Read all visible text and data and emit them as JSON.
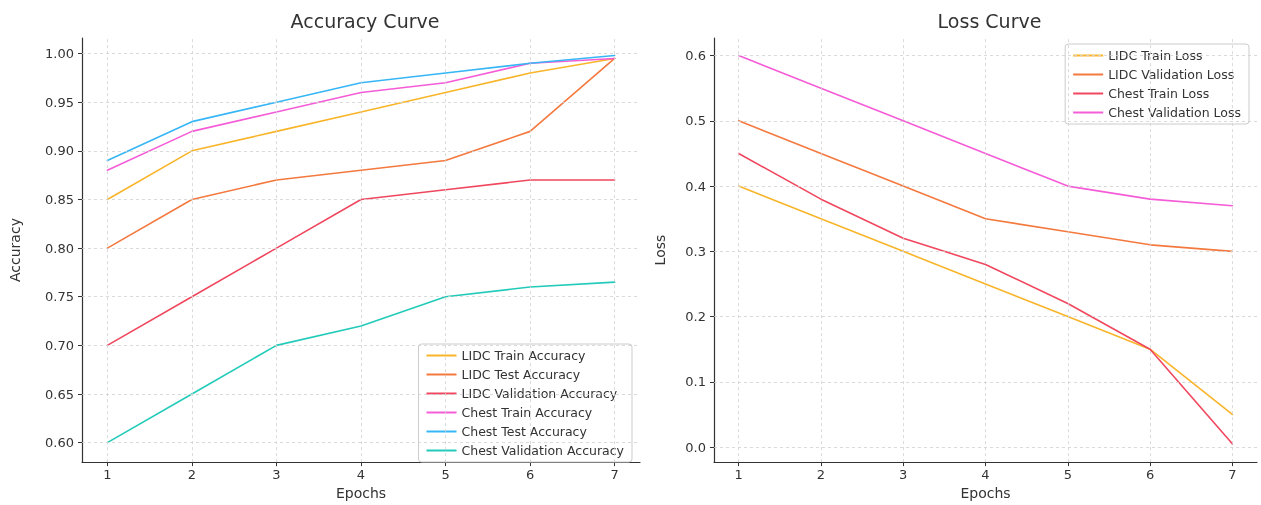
{
  "chart_data": [
    {
      "type": "line",
      "title": "Accuracy Curve",
      "xlabel": "Epochs",
      "ylabel": "Accuracy",
      "x": [
        1,
        2,
        3,
        4,
        5,
        6,
        7
      ],
      "xlim": [
        0.7,
        7.3
      ],
      "xticks": [
        1,
        2,
        3,
        4,
        5,
        6,
        7
      ],
      "ylim": [
        0.58,
        1.016
      ],
      "yticks": [
        {
          "value": 0.6,
          "label": "0.60"
        },
        {
          "value": 0.65,
          "label": "0.65"
        },
        {
          "value": 0.7,
          "label": "0.70"
        },
        {
          "value": 0.75,
          "label": "0.75"
        },
        {
          "value": 0.8,
          "label": "0.80"
        },
        {
          "value": 0.85,
          "label": "0.85"
        },
        {
          "value": 0.9,
          "label": "0.90"
        },
        {
          "value": 0.95,
          "label": "0.95"
        },
        {
          "value": 1.0,
          "label": "1.00"
        }
      ],
      "grid": true,
      "legend": "bottom right",
      "marker": "none",
      "line_style": "solid",
      "series": [
        {
          "name": "LIDC Train Accuracy",
          "color": "#f9b52a",
          "values": [
            0.85,
            0.9,
            0.92,
            0.94,
            0.96,
            0.98,
            0.995
          ]
        },
        {
          "name": "LIDC Test Accuracy",
          "color": "#f4793e",
          "values": [
            0.8,
            0.85,
            0.87,
            0.88,
            0.89,
            0.92,
            0.995
          ]
        },
        {
          "name": "LIDC Validation Accuracy",
          "color": "#f0475e",
          "values": [
            0.7,
            0.75,
            0.8,
            0.85,
            0.86,
            0.87,
            0.87
          ]
        },
        {
          "name": "Chest Train Accuracy",
          "color": "#f55cd7",
          "values": [
            0.88,
            0.92,
            0.94,
            0.96,
            0.97,
            0.99,
            0.995
          ]
        },
        {
          "name": "Chest Test Accuracy",
          "color": "#37b6f6",
          "values": [
            0.89,
            0.93,
            0.95,
            0.97,
            0.98,
            0.99,
            0.998
          ]
        },
        {
          "name": "Chest Validation Accuracy",
          "color": "#22cbb9",
          "values": [
            0.6,
            0.65,
            0.7,
            0.72,
            0.75,
            0.76,
            0.765
          ]
        }
      ]
    },
    {
      "type": "line",
      "title": "Loss Curve",
      "xlabel": "Epochs",
      "ylabel": "Loss",
      "x": [
        1,
        2,
        3,
        4,
        5,
        6,
        7
      ],
      "xlim": [
        0.7,
        7.3
      ],
      "xticks": [
        1,
        2,
        3,
        4,
        5,
        6,
        7
      ],
      "ylim": [
        -0.023,
        0.627
      ],
      "yticks": [
        {
          "value": 0,
          "label": "0.0"
        },
        {
          "value": 0.1,
          "label": "0.1"
        },
        {
          "value": 0.2,
          "label": "0.2"
        },
        {
          "value": 0.3,
          "label": "0.3"
        },
        {
          "value": 0.4,
          "label": "0.4"
        },
        {
          "value": 0.5,
          "label": "0.5"
        },
        {
          "value": 0.6,
          "label": "0.6"
        }
      ],
      "grid": true,
      "legend": "top right",
      "marker": "none",
      "line_style": "solid",
      "series": [
        {
          "name": "LIDC Train Loss",
          "color": "#f9b52a",
          "values": [
            0.4,
            0.35,
            0.3,
            0.25,
            0.2,
            0.15,
            0.05
          ]
        },
        {
          "name": "LIDC Validation Loss",
          "color": "#f4793e",
          "values": [
            0.5,
            0.45,
            0.4,
            0.35,
            0.33,
            0.31,
            0.3
          ]
        },
        {
          "name": "Chest Train Loss",
          "color": "#f0475e",
          "values": [
            0.45,
            0.38,
            0.32,
            0.28,
            0.22,
            0.15,
            0.005
          ]
        },
        {
          "name": "Chest Validation Loss",
          "color": "#f55cd7",
          "values": [
            0.6,
            0.55,
            0.5,
            0.45,
            0.4,
            0.38,
            0.37
          ]
        }
      ]
    }
  ]
}
